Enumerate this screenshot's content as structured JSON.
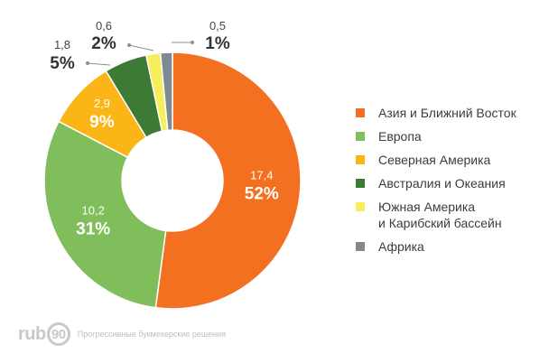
{
  "chart_data": {
    "type": "pie",
    "donut": true,
    "title": "",
    "slices": [
      {
        "name": "Азия и Ближний Восток",
        "value": 17.4,
        "percent": "52%",
        "value_label": "17,4",
        "color": "#f37021"
      },
      {
        "name": "Европа",
        "value": 10.2,
        "percent": "31%",
        "value_label": "10,2",
        "color": "#80bd5b"
      },
      {
        "name": "Северная Америка",
        "value": 2.9,
        "percent": "9%",
        "value_label": "2,9",
        "color": "#fbb516"
      },
      {
        "name": "Австралия и Океания",
        "value": 1.8,
        "percent": "5%",
        "value_label": "1,8",
        "color": "#3d7a35"
      },
      {
        "name": "Южная Америка\nи Карибский бассейн",
        "value": 0.6,
        "percent": "2%",
        "value_label": "0,6",
        "color": "#f6ee5b"
      },
      {
        "name": "Африка",
        "value": 0.5,
        "percent": "1%",
        "value_label": "0,5",
        "color": "#7e8a92"
      }
    ],
    "legend_position": "right"
  },
  "footer": {
    "logo_text": "rub",
    "logo_badge": "90",
    "tagline": "Прогрессивные букмекерские решения"
  }
}
